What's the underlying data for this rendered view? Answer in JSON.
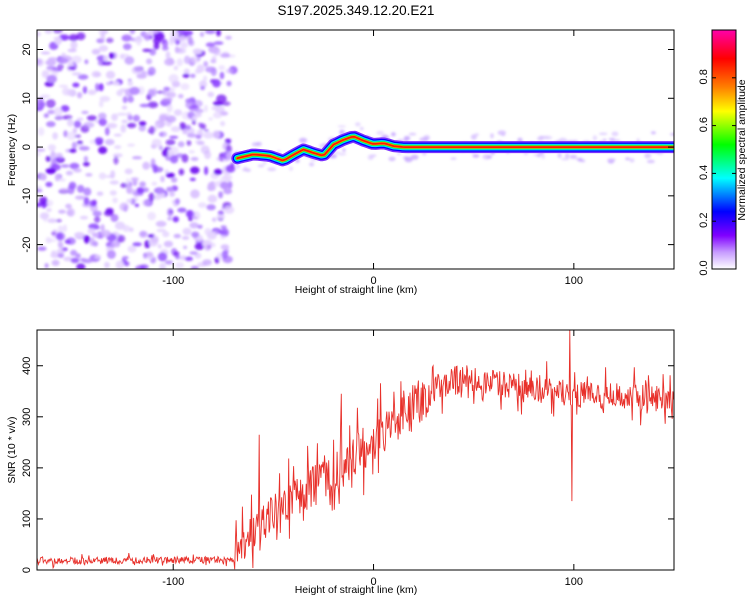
{
  "title": "S197.2025.349.12.20.E21",
  "chart_data": [
    {
      "type": "heatmap",
      "xlabel": "Height of straight line (km)",
      "ylabel": "Frequency (Hz)",
      "xlim": [
        -168,
        150
      ],
      "ylim": [
        -25,
        24
      ],
      "xticks": [
        -100,
        0,
        100
      ],
      "yticks": [
        -20,
        -10,
        0,
        10,
        20
      ],
      "noise_region_x": [
        -168,
        -70
      ],
      "colorbar": {
        "label": "Normalized spectral amplitude",
        "range": [
          0,
          1
        ],
        "ticks": [
          0.0,
          0.2,
          0.4,
          0.6,
          0.8
        ],
        "colors": [
          "#ffffff",
          "#8000ff",
          "#0000ff",
          "#00ffff",
          "#00ff00",
          "#ffff00",
          "#ff8000",
          "#ff0000",
          "#ff00ff"
        ]
      },
      "signal_track": {
        "x": [
          -68,
          -60,
          -52,
          -45,
          -40,
          -35,
          -30,
          -25,
          -20,
          -15,
          -10,
          -5,
          0,
          5,
          10,
          15,
          50,
          90,
          100,
          135,
          150
        ],
        "y": [
          -2.3,
          -1.5,
          -1.8,
          -2.8,
          -1.6,
          -0.5,
          -1.2,
          -1.8,
          0.5,
          1.5,
          2.2,
          1.3,
          0.6,
          0.8,
          0.2,
          0,
          0,
          0,
          0,
          0,
          0
        ]
      }
    },
    {
      "type": "line",
      "xlabel": "Height of straight line (km)",
      "ylabel": "SNR (10 * v/v)",
      "xlim": [
        -168,
        150
      ],
      "ylim": [
        0,
        470
      ],
      "xticks": [
        -100,
        0,
        100
      ],
      "yticks": [
        0,
        100,
        200,
        300,
        400
      ],
      "trend": {
        "x": [
          -168,
          -70,
          -60,
          -50,
          -40,
          -30,
          -20,
          -10,
          0,
          10,
          20,
          30,
          40,
          60,
          80,
          100,
          120,
          150
        ],
        "y": [
          18,
          20,
          80,
          110,
          140,
          165,
          185,
          220,
          255,
          290,
          320,
          355,
          375,
          370,
          350,
          345,
          340,
          338
        ]
      },
      "spikes": [
        {
          "x": -57,
          "y": 265
        },
        {
          "x": -16,
          "y": 345
        },
        {
          "x": 98,
          "y": 470
        },
        {
          "x": 99,
          "y": 135
        }
      ],
      "series_color": "#e8302a"
    }
  ]
}
